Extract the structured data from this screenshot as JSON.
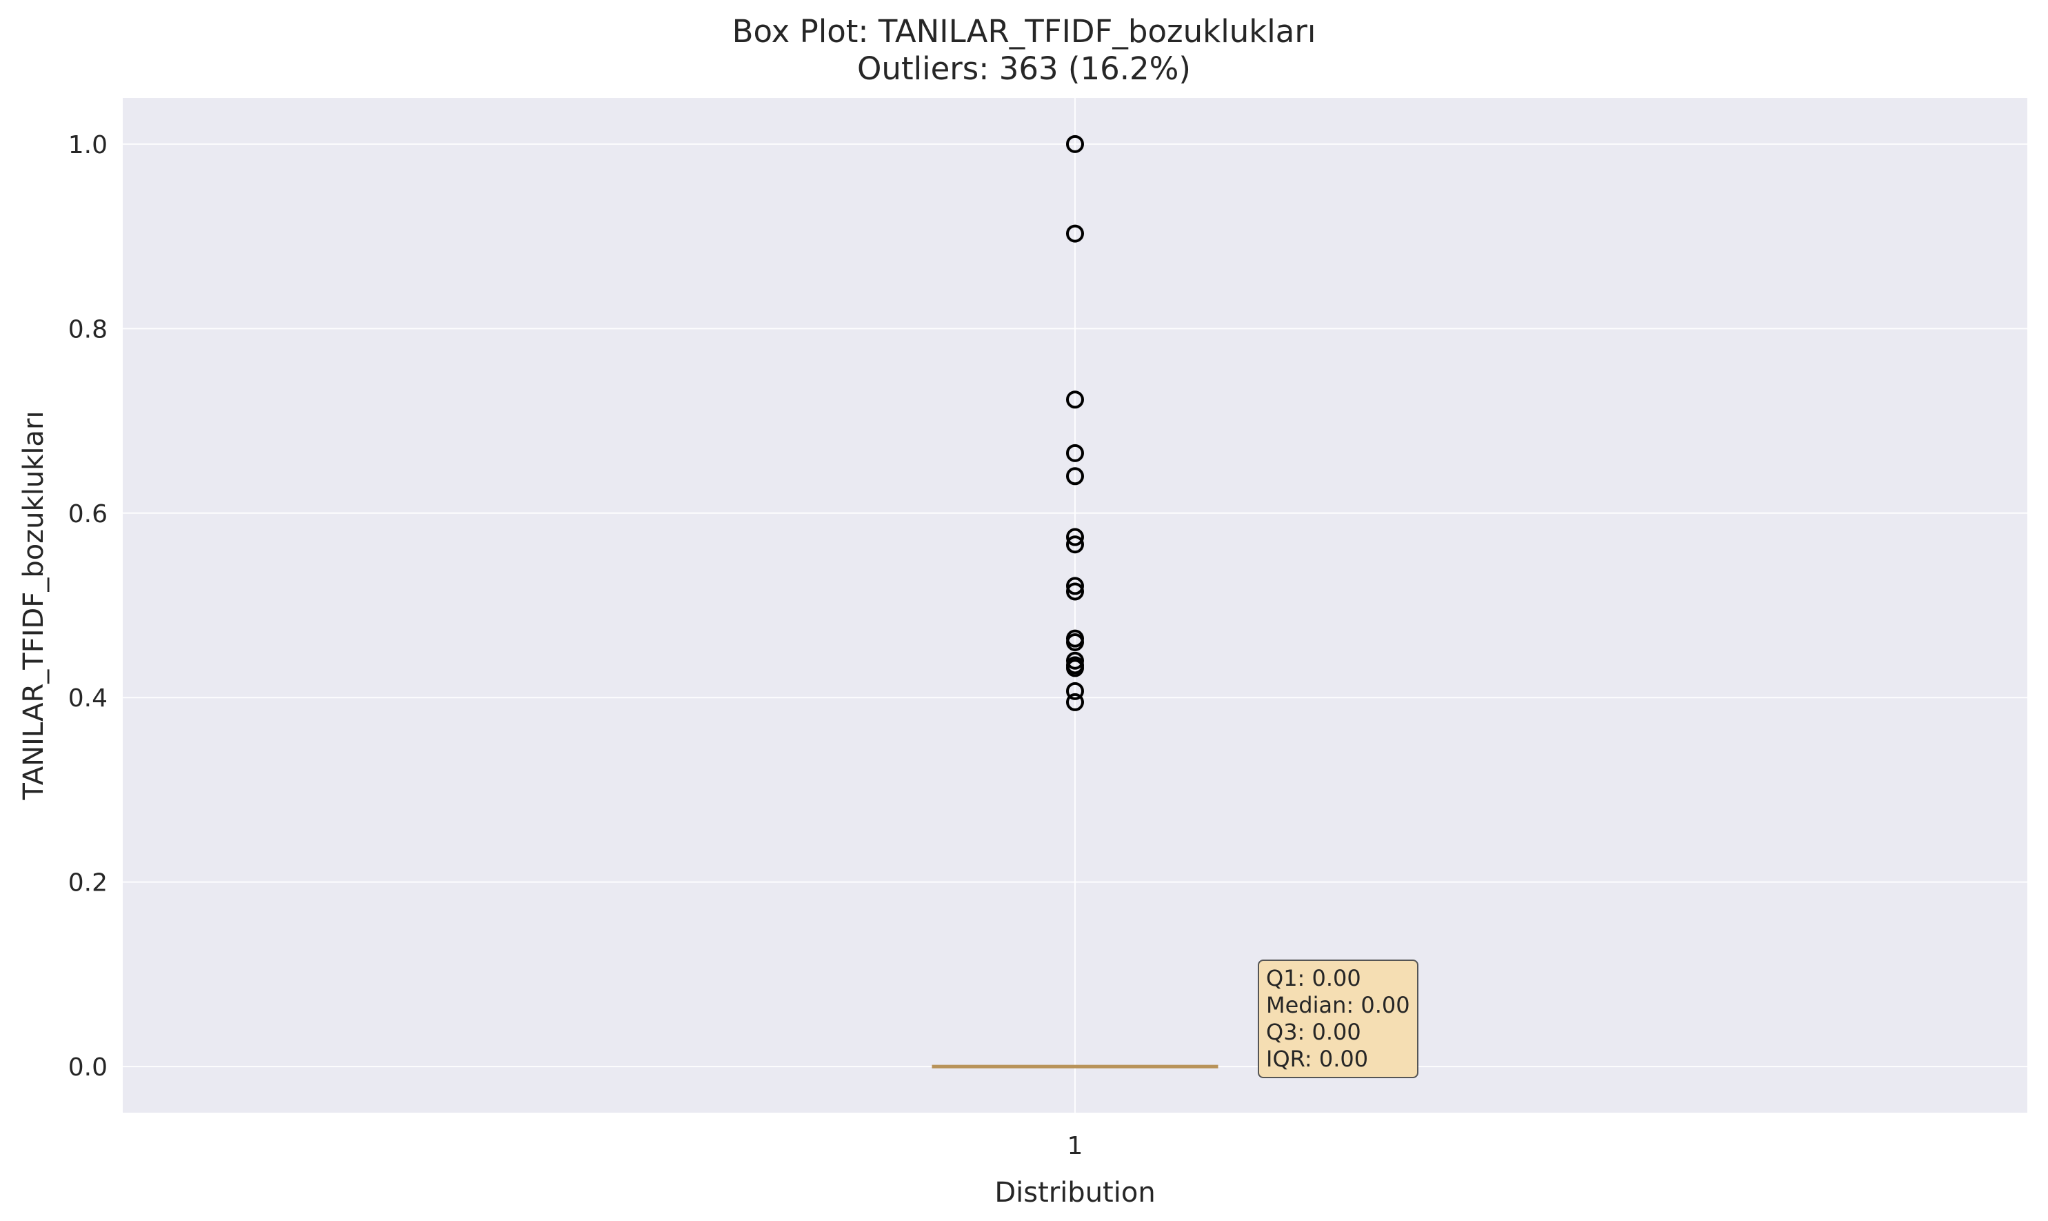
{
  "chart_data": {
    "type": "box",
    "title": "Box Plot: TANILAR_TFIDF_bozuklukları",
    "subtitle": "Outliers: 363 (16.2%)",
    "xlabel": "Distribution",
    "ylabel": "TANILAR_TFIDF_bozuklukları",
    "categories": [
      "1"
    ],
    "ylim": [
      -0.05,
      1.05
    ],
    "yticks": [
      0.0,
      0.2,
      0.4,
      0.6,
      0.8,
      1.0
    ],
    "ytick_labels": [
      "0.0",
      "0.2",
      "0.4",
      "0.6",
      "0.8",
      "1.0"
    ],
    "grid": true,
    "box": {
      "q1": 0.0,
      "median": 0.0,
      "q3": 0.0,
      "whisker_low": 0.0,
      "whisker_high": 0.0
    },
    "outliers": [
      1.0,
      0.903,
      0.723,
      0.665,
      0.64,
      0.574,
      0.566,
      0.521,
      0.515,
      0.464,
      0.46,
      0.44,
      0.435,
      0.432,
      0.407,
      0.395
    ],
    "stats_text": [
      "Q1: 0.00",
      "Median: 0.00",
      "Q3: 0.00",
      "IQR: 0.00"
    ],
    "colors": {
      "plot_bg": "#eaeaf2",
      "grid": "#ffffff",
      "median": "#b8935a",
      "box_edge": "#b8935a",
      "outlier_edge": "#000000",
      "stats_bg": "#f5deb3"
    }
  }
}
